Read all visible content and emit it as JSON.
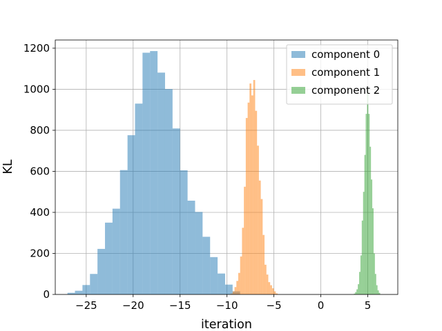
{
  "chart_data": {
    "type": "histogram",
    "title": "",
    "xlabel": "iteration",
    "ylabel": "KL",
    "xlim": [
      -28.3,
      8.2
    ],
    "ylim": [
      0,
      1240
    ],
    "xticks": [
      -25,
      -20,
      -15,
      -10,
      -5,
      0,
      5
    ],
    "yticks": [
      0,
      200,
      400,
      600,
      800,
      1000,
      1200
    ],
    "grid": true,
    "legend_position": "top-right",
    "series": [
      {
        "name": "component 0",
        "color": "#1f77b4",
        "alpha": 0.5,
        "bin_width": 0.8,
        "bins": [
          [
            -27.0,
            8
          ],
          [
            -26.2,
            18
          ],
          [
            -25.4,
            46
          ],
          [
            -24.6,
            100
          ],
          [
            -23.8,
            222
          ],
          [
            -23.0,
            350
          ],
          [
            -22.2,
            418
          ],
          [
            -21.4,
            606
          ],
          [
            -20.6,
            776
          ],
          [
            -19.8,
            930
          ],
          [
            -19.0,
            1178
          ],
          [
            -18.2,
            1186
          ],
          [
            -17.4,
            1081
          ],
          [
            -16.6,
            1001
          ],
          [
            -15.8,
            809
          ],
          [
            -15.0,
            605
          ],
          [
            -14.2,
            457
          ],
          [
            -13.4,
            402
          ],
          [
            -12.6,
            281
          ],
          [
            -11.8,
            182
          ],
          [
            -11.0,
            102
          ],
          [
            -10.2,
            48
          ],
          [
            -9.4,
            15
          ]
        ]
      },
      {
        "name": "component 1",
        "color": "#ff7f0e",
        "alpha": 0.5,
        "bin_width": 0.2,
        "bins": [
          [
            -9.6,
            4
          ],
          [
            -9.4,
            15
          ],
          [
            -9.2,
            36
          ],
          [
            -9.0,
            66
          ],
          [
            -8.8,
            105
          ],
          [
            -8.6,
            185
          ],
          [
            -8.4,
            325
          ],
          [
            -8.2,
            525
          ],
          [
            -8.0,
            860
          ],
          [
            -7.8,
            935
          ],
          [
            -7.6,
            1028
          ],
          [
            -7.4,
            970
          ],
          [
            -7.2,
            1045
          ],
          [
            -7.0,
            895
          ],
          [
            -6.8,
            725
          ],
          [
            -6.6,
            555
          ],
          [
            -6.4,
            465
          ],
          [
            -6.2,
            290
          ],
          [
            -6.0,
            145
          ],
          [
            -5.8,
            97
          ],
          [
            -5.6,
            60
          ],
          [
            -5.4,
            45
          ],
          [
            -5.2,
            30
          ],
          [
            -5.0,
            15
          ],
          [
            -4.8,
            5
          ]
        ]
      },
      {
        "name": "component 2",
        "color": "#2ca02c",
        "alpha": 0.5,
        "bin_width": 0.14,
        "bins": [
          [
            3.52,
            4
          ],
          [
            3.66,
            12
          ],
          [
            3.8,
            25
          ],
          [
            3.94,
            50
          ],
          [
            4.08,
            110
          ],
          [
            4.22,
            190
          ],
          [
            4.36,
            360
          ],
          [
            4.5,
            500
          ],
          [
            4.64,
            680
          ],
          [
            4.78,
            880
          ],
          [
            4.92,
            1000
          ],
          [
            5.06,
            880
          ],
          [
            5.2,
            720
          ],
          [
            5.34,
            560
          ],
          [
            5.48,
            420
          ],
          [
            5.62,
            200
          ],
          [
            5.76,
            100
          ],
          [
            5.9,
            45
          ],
          [
            6.04,
            20
          ],
          [
            6.18,
            8
          ]
        ]
      }
    ]
  }
}
